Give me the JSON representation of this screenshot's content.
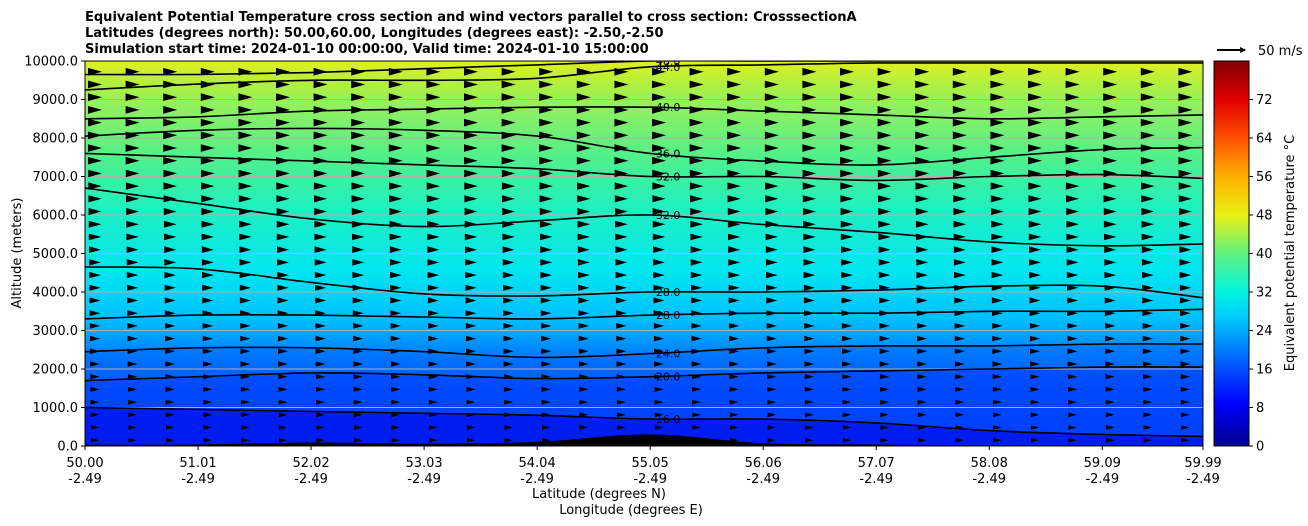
{
  "chart_data": {
    "type": "heatmap",
    "title_lines": [
      "Equivalent Potential Temperature cross section and wind vectors parallel to cross section: CrosssectionA",
      "Latitudes (degrees north): 50.00,60.00, Longitudes (degrees east): -2.50,-2.50",
      "Simulation start time: 2024-01-10 00:00:00, Valid time: 2024-01-10 15:00:00"
    ],
    "xlabel_lines": [
      "Latitude (degrees N)",
      "Longitude (degrees E)"
    ],
    "ylabel": "Altitude (meters)",
    "colorbar_label": "Equivalent potential temperature °C",
    "quiver_key": "50 m/s",
    "xlim": [
      50.0,
      59.99
    ],
    "ylim": [
      0,
      10000
    ],
    "x_ticks": [
      {
        "lat": "50.00",
        "lon": "-2.49"
      },
      {
        "lat": "51.01",
        "lon": "-2.49"
      },
      {
        "lat": "52.02",
        "lon": "-2.49"
      },
      {
        "lat": "53.03",
        "lon": "-2.49"
      },
      {
        "lat": "54.04",
        "lon": "-2.49"
      },
      {
        "lat": "55.05",
        "lon": "-2.49"
      },
      {
        "lat": "56.06",
        "lon": "-2.49"
      },
      {
        "lat": "57.07",
        "lon": "-2.49"
      },
      {
        "lat": "58.08",
        "lon": "-2.49"
      },
      {
        "lat": "59.09",
        "lon": "-2.49"
      },
      {
        "lat": "59.99",
        "lon": "-2.49"
      }
    ],
    "y_ticks": [
      "0.0",
      "1000.0",
      "2000.0",
      "3000.0",
      "4000.0",
      "5000.0",
      "6000.0",
      "7000.0",
      "8000.0",
      "9000.0",
      "10000.0"
    ],
    "y_tick_values": [
      0,
      1000,
      2000,
      3000,
      4000,
      5000,
      6000,
      7000,
      8000,
      9000,
      10000
    ],
    "colorbar_ticks": [
      0,
      8,
      16,
      24,
      32,
      40,
      48,
      56,
      64,
      72
    ],
    "colorbar_range": [
      0,
      80
    ],
    "grid": "horizontal",
    "x_positions": [
      50.0,
      51.01,
      52.02,
      53.03,
      54.04,
      55.05,
      56.06,
      57.07,
      58.08,
      59.09,
      59.99
    ],
    "contours": [
      {
        "level": 16,
        "label": "16.0",
        "altitudes": [
          1000,
          950,
          900,
          850,
          800,
          700,
          700,
          600,
          400,
          300,
          250
        ]
      },
      {
        "level": 20,
        "label": "20.0",
        "altitudes": [
          1700,
          1800,
          1900,
          1850,
          1750,
          1800,
          1900,
          1950,
          2000,
          2050,
          2050
        ]
      },
      {
        "level": 24,
        "label": "24.0",
        "altitudes": [
          2450,
          2550,
          2550,
          2450,
          2300,
          2400,
          2550,
          2600,
          2600,
          2650,
          2650
        ]
      },
      {
        "level": 28,
        "label": "28.0",
        "altitudes": [
          3300,
          3400,
          3400,
          3350,
          3300,
          3400,
          3450,
          3450,
          3500,
          3500,
          3550
        ]
      },
      {
        "level": 28,
        "label": "28.0",
        "altitudes": [
          4650,
          4600,
          4250,
          3950,
          3900,
          4000,
          4000,
          4050,
          4150,
          4150,
          3850
        ]
      },
      {
        "level": 32,
        "label": "32.0",
        "altitudes": [
          6700,
          6300,
          5900,
          5700,
          5850,
          6000,
          5750,
          5550,
          5300,
          5200,
          5250
        ]
      },
      {
        "level": 32,
        "label": "32.0",
        "altitudes": [
          7600,
          7500,
          7400,
          7300,
          7200,
          7000,
          7000,
          6900,
          7000,
          7050,
          6950
        ]
      },
      {
        "level": 36,
        "label": "36.0",
        "altitudes": [
          8050,
          8200,
          8250,
          8200,
          8050,
          7600,
          7400,
          7300,
          7500,
          7700,
          7750
        ]
      },
      {
        "level": 40,
        "label": "40.0",
        "altitudes": [
          8500,
          8550,
          8700,
          8750,
          8800,
          8800,
          8700,
          8600,
          8500,
          8550,
          8600
        ]
      },
      {
        "level": 44,
        "label": "44.0",
        "altitudes": [
          9250,
          9400,
          9500,
          9500,
          9550,
          9850,
          9900,
          9950,
          9950,
          9950,
          9950
        ]
      },
      {
        "level": 48,
        "label": "48.0",
        "altitudes": [
          9650,
          9650,
          9700,
          9800,
          9900,
          10000,
          10000,
          10000,
          10000,
          10000,
          10000
        ]
      }
    ],
    "surface_height": [
      30,
      40,
      90,
      60,
      110,
      300,
      70,
      40,
      10,
      0,
      0
    ]
  }
}
